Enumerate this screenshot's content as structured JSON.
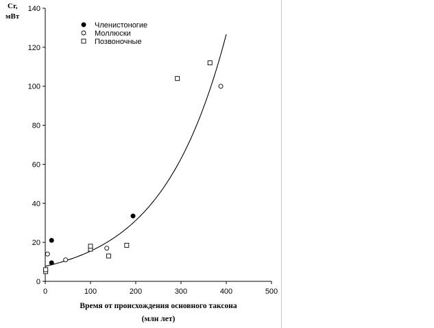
{
  "chart_data": {
    "type": "scatter",
    "ylabel": [
      "Cr,",
      "мВт"
    ],
    "xlabel": [
      "Время от происхождения основного таксона",
      "(млн лет)"
    ],
    "xlim": [
      0,
      500
    ],
    "ylim": [
      0,
      140
    ],
    "x_ticks": [
      "0",
      "100",
      "200",
      "300",
      "400",
      "500"
    ],
    "y_ticks": [
      "0",
      "20",
      "40",
      "60",
      "80",
      "100",
      "120",
      "140"
    ],
    "grid": false,
    "legend_position": "top-left",
    "series": [
      {
        "name": "Членистоногие",
        "marker": "filled-circle",
        "points": [
          [
            14,
            21
          ],
          [
            14,
            9.5
          ],
          [
            194,
            33.5
          ]
        ]
      },
      {
        "name": "Моллюски",
        "marker": "open-circle",
        "points": [
          [
            5,
            14
          ],
          [
            45,
            11
          ],
          [
            136,
            17
          ],
          [
            388,
            100
          ]
        ]
      },
      {
        "name": "Позвоночные",
        "marker": "open-square",
        "points": [
          [
            1,
            5
          ],
          [
            1,
            6
          ],
          [
            100,
            16.5
          ],
          [
            100,
            18
          ],
          [
            140,
            13
          ],
          [
            180,
            18.5
          ],
          [
            292,
            104
          ],
          [
            364,
            112
          ]
        ]
      }
    ],
    "trendline": {
      "type": "exponential",
      "a": 7.7,
      "b": 0.007,
      "x_range": [
        0,
        400
      ],
      "color": "#000000"
    }
  }
}
